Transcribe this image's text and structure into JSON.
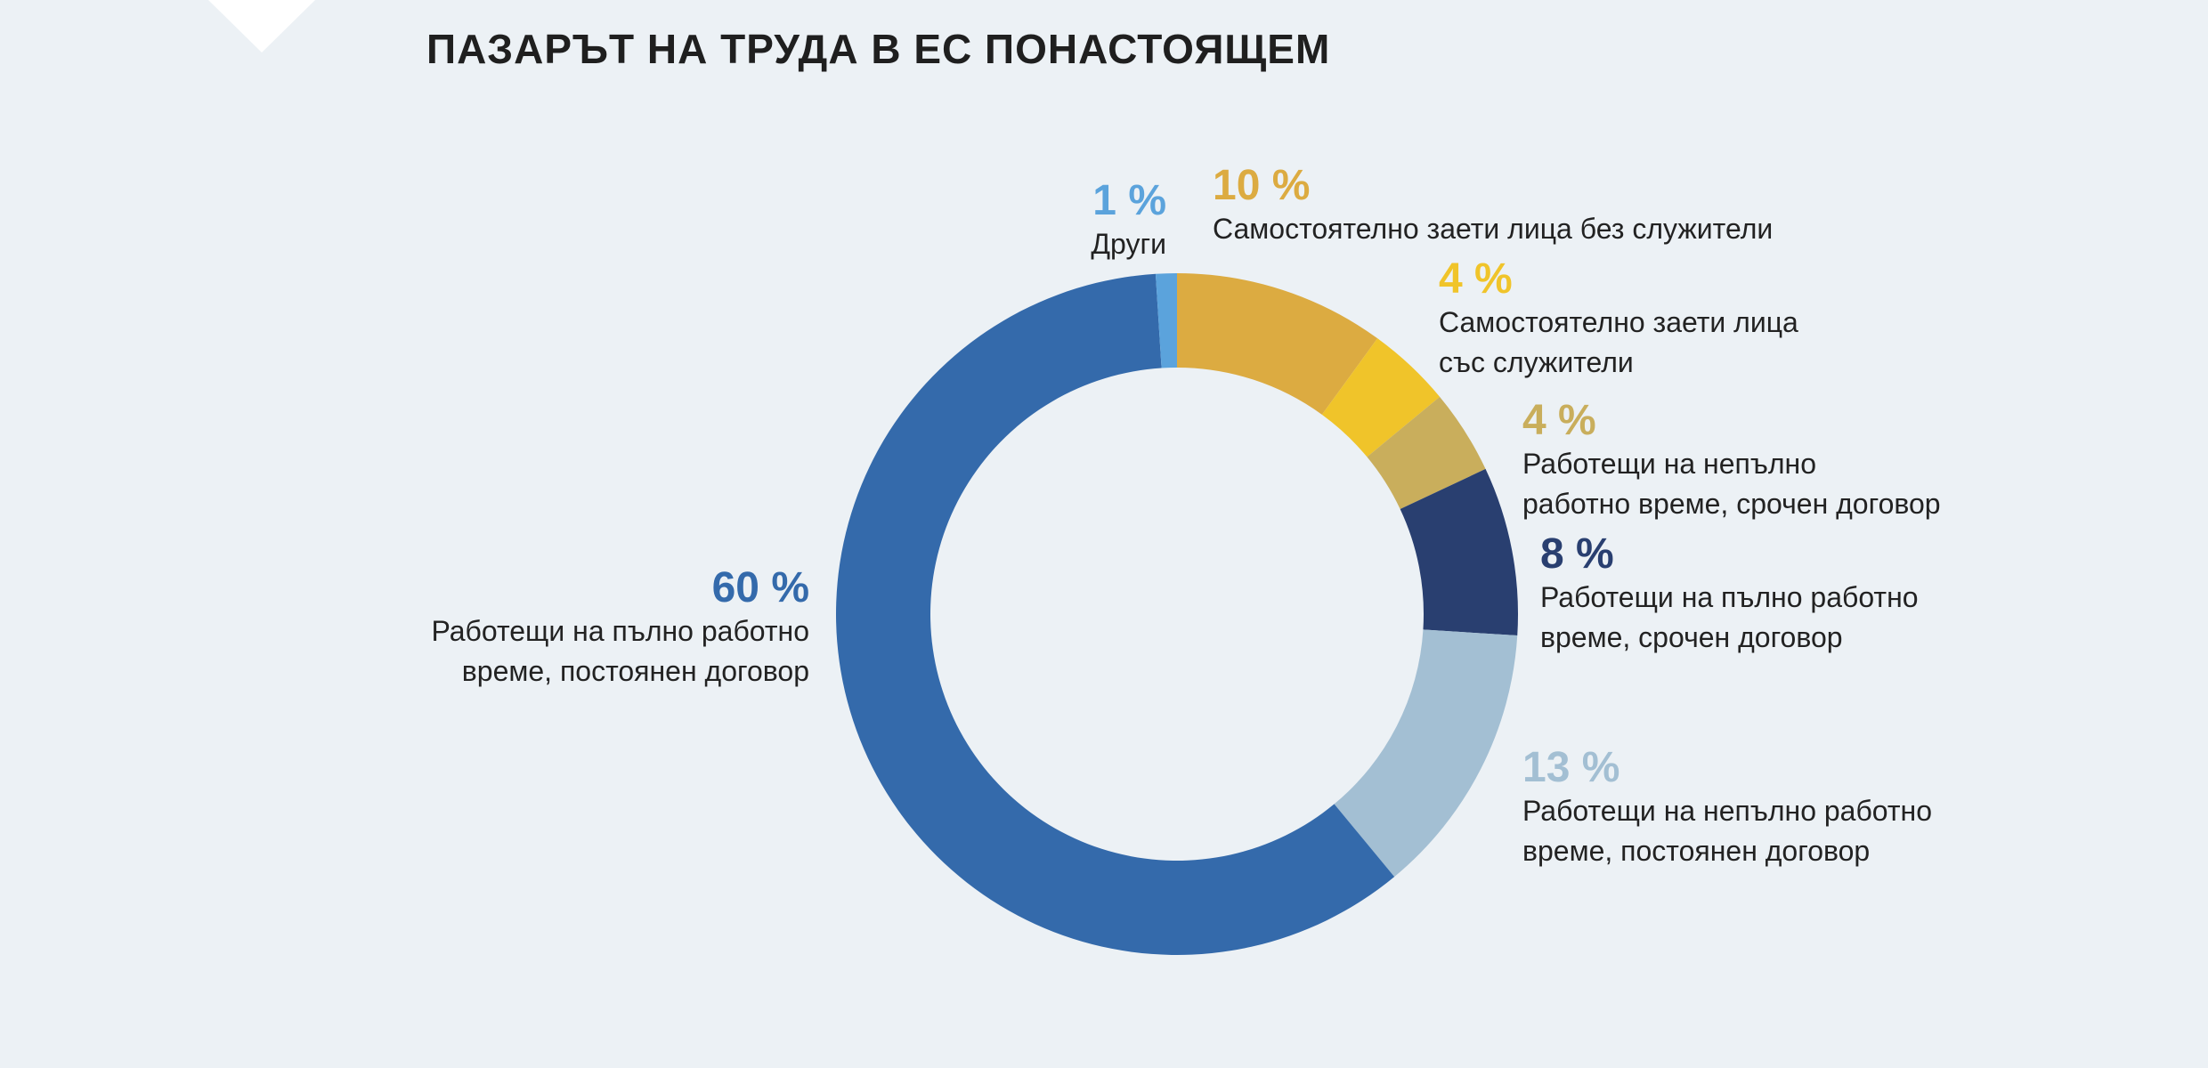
{
  "chart_data": {
    "type": "donut",
    "title": "ПАЗАРЪТ НА ТРУДА В ЕС ПОНАСТОЯЩЕМ",
    "categories": [
      "Самостоятелно заети лица без служители",
      "Самостоятелно заети лица\nсъс служители",
      "Работещи на непълно\nработно време, срочен договор",
      "Работещи на пълно работно\nвреме, срочен договор",
      "Работещи на непълно работно\nвреме, постоянен договор",
      "Работещи на пълно работно\nвреме, постоянен договор",
      "Други"
    ],
    "values": [
      10,
      4,
      4,
      8,
      13,
      60,
      1
    ],
    "value_labels": [
      "10 %",
      "4 %",
      "4 %",
      "8 %",
      "13 %",
      "60 %",
      "1 %"
    ],
    "colors": [
      "#dcab41",
      "#f0c42a",
      "#c9ae5c",
      "#293f70",
      "#a3bfd3",
      "#346aab",
      "#5ba3dc"
    ]
  }
}
